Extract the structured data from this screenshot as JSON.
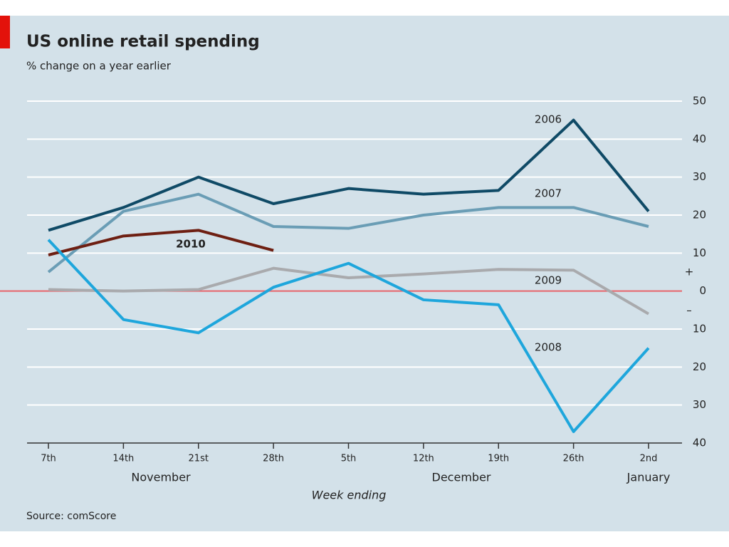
{
  "chart_data": {
    "type": "line",
    "title": "US online retail spending",
    "subtitle": "% change on a year earlier",
    "x_label": "Week ending",
    "source": "Source: comScore",
    "categories": [
      "7th",
      "14th",
      "21st",
      "28th",
      "5th",
      "12th",
      "19th",
      "26th",
      "2nd"
    ],
    "months": [
      "November",
      "December",
      "January"
    ],
    "positive_sign": "+",
    "negative_sign": "–",
    "series": [
      {
        "name": "2006",
        "color": "#0f4a66",
        "values": [
          16,
          22,
          30,
          23,
          27,
          25.5,
          26.5,
          45,
          21
        ]
      },
      {
        "name": "2007",
        "color": "#6a9db5",
        "values": [
          5,
          21,
          25.5,
          17,
          16.5,
          20,
          22,
          22,
          17
        ]
      },
      {
        "name": "2010",
        "color": "#6e1f12",
        "values": [
          9.5,
          14.5,
          16,
          10.7,
          null,
          null,
          null,
          null,
          null
        ]
      },
      {
        "name": "2009",
        "color": "#a9aaad",
        "values": [
          0.4,
          0,
          0.4,
          6,
          3.5,
          4.5,
          5.7,
          5.5,
          -6
        ]
      },
      {
        "name": "2008",
        "color": "#1ea6dc",
        "values": [
          13.5,
          -7.5,
          -11,
          1,
          7.3,
          -2.3,
          -3.6,
          -37,
          -15
        ]
      }
    ],
    "ylim": [
      -40,
      50
    ],
    "yticks": [
      50,
      40,
      30,
      20,
      10,
      0,
      {
        "value": -10,
        "label": "10"
      },
      {
        "value": -20,
        "label": "20"
      },
      {
        "value": -30,
        "label": "30"
      },
      {
        "value": -40,
        "label": "40"
      }
    ],
    "grid": true,
    "zero_line_color": "#e8636a",
    "background": "#d3e1e9"
  }
}
